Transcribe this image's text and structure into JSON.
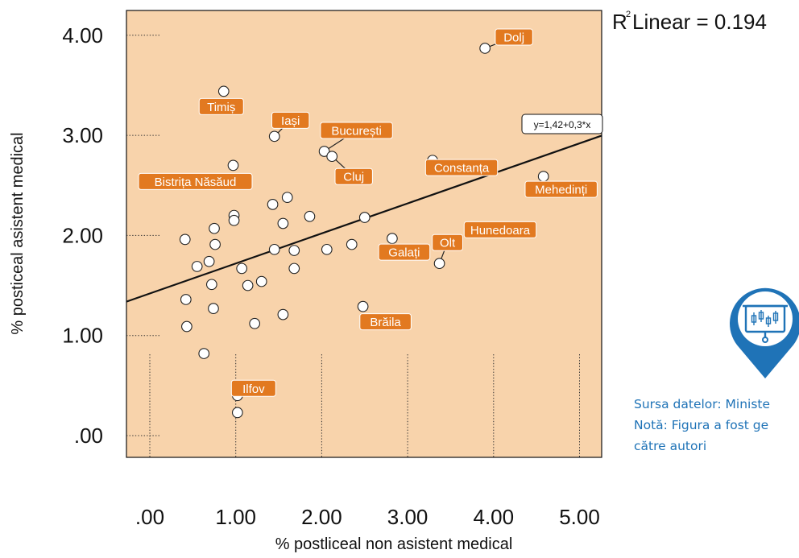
{
  "chart_data": {
    "type": "scatter",
    "xlabel": "% postliceal non asistent medical",
    "ylabel": "% posticeal asistent medical",
    "x_ticks": [
      ".00",
      "1.00",
      "2.00",
      "3.00",
      "4.00",
      "5.00"
    ],
    "y_ticks": [
      ".00",
      "1.00",
      "2.00",
      "3.00",
      "4.00"
    ],
    "xlim": [
      -0.27,
      5.3
    ],
    "ylim": [
      -0.27,
      4.25
    ],
    "r2_label": "R",
    "r2_super": "2",
    "r2_text": "Linear = 0.194",
    "fit_equation": "y=1,42+0,3*x",
    "fit": {
      "intercept": 1.42,
      "slope": 0.3
    },
    "plot_color": "#f8d3ab",
    "label_color": "#e27920",
    "points": [
      {
        "x": 3.9,
        "y": 3.87,
        "label": "Dolj"
      },
      {
        "x": 0.86,
        "y": 3.44,
        "label": "Timiș"
      },
      {
        "x": 1.45,
        "y": 2.99,
        "label": "Iași"
      },
      {
        "x": 2.03,
        "y": 2.84,
        "label": "București"
      },
      {
        "x": 2.12,
        "y": 2.79,
        "label": "Cluj"
      },
      {
        "x": 3.29,
        "y": 2.75,
        "label": "Constanța"
      },
      {
        "x": 0.97,
        "y": 2.7,
        "label": "Bistrița Năsăud"
      },
      {
        "x": 4.58,
        "y": 2.59,
        "label": "Mehedinți"
      },
      {
        "x": 3.73,
        "y": 2.04,
        "label": "Hunedoara"
      },
      {
        "x": 2.82,
        "y": 1.97,
        "label": "Galați"
      },
      {
        "x": 3.37,
        "y": 1.72,
        "label": "Olt"
      },
      {
        "x": 2.48,
        "y": 1.29,
        "label": "Brăila"
      },
      {
        "x": 1.02,
        "y": 0.4,
        "label": "Ilfov"
      },
      {
        "x": 1.02,
        "y": 0.23
      },
      {
        "x": 1.6,
        "y": 2.38
      },
      {
        "x": 1.43,
        "y": 2.31
      },
      {
        "x": 1.86,
        "y": 2.19
      },
      {
        "x": 2.5,
        "y": 2.18
      },
      {
        "x": 0.98,
        "y": 2.2
      },
      {
        "x": 0.98,
        "y": 2.15
      },
      {
        "x": 1.55,
        "y": 2.12
      },
      {
        "x": 0.75,
        "y": 2.07
      },
      {
        "x": 0.41,
        "y": 1.96
      },
      {
        "x": 0.76,
        "y": 1.91
      },
      {
        "x": 2.35,
        "y": 1.91
      },
      {
        "x": 1.45,
        "y": 1.86
      },
      {
        "x": 1.68,
        "y": 1.85
      },
      {
        "x": 2.06,
        "y": 1.86
      },
      {
        "x": 0.69,
        "y": 1.74
      },
      {
        "x": 0.55,
        "y": 1.69
      },
      {
        "x": 1.07,
        "y": 1.67
      },
      {
        "x": 1.68,
        "y": 1.67
      },
      {
        "x": 1.3,
        "y": 1.54
      },
      {
        "x": 0.72,
        "y": 1.51
      },
      {
        "x": 1.14,
        "y": 1.5
      },
      {
        "x": 0.42,
        "y": 1.36
      },
      {
        "x": 0.74,
        "y": 1.27
      },
      {
        "x": 1.55,
        "y": 1.21
      },
      {
        "x": 1.22,
        "y": 1.12
      },
      {
        "x": 0.43,
        "y": 1.09
      },
      {
        "x": 0.63,
        "y": 0.82
      }
    ]
  },
  "source": {
    "line1": "Sursa datelor: Ministe",
    "line2": "Notă: Figura a fost ge",
    "line3": "către autori"
  },
  "icon": {
    "name": "chart-pin-icon",
    "color": "#1f73b7"
  }
}
